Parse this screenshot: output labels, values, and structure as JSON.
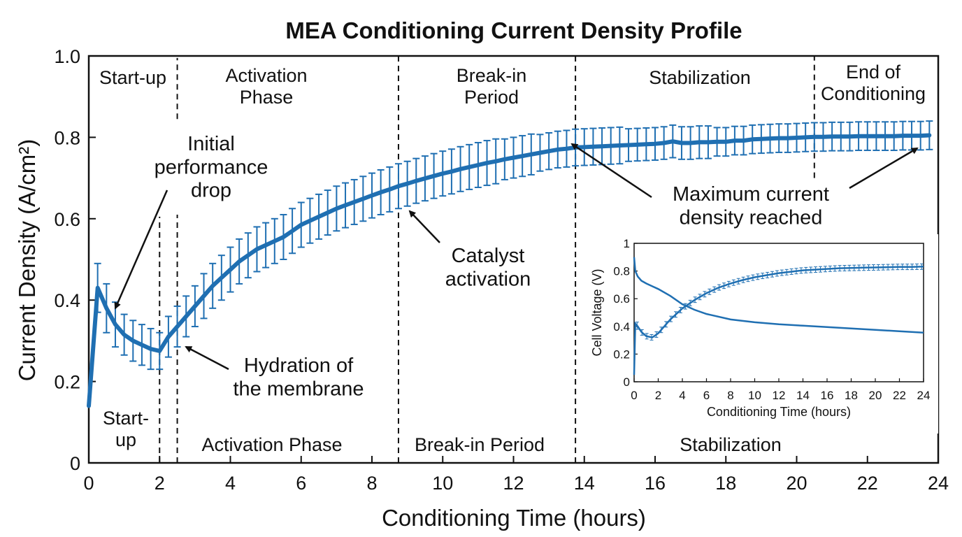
{
  "chart_data": [
    {
      "type": "line",
      "title": "MEA Conditioning Current Density Profile",
      "xlabel": "Conditioning Time (hours)",
      "ylabel": "Current Density (A/cm²)",
      "xlim": [
        0,
        24
      ],
      "ylim": [
        0,
        1.0
      ],
      "xticks": [
        "0",
        "2",
        "4",
        "6",
        "8",
        "10",
        "12",
        "14",
        "16",
        "18",
        "20",
        "22",
        "24"
      ],
      "yticks": [
        "0",
        "0.2",
        "0.4",
        "0.6",
        "0.8",
        "1.0"
      ],
      "grid": false,
      "color": "#1f6fb2",
      "series": [
        {
          "x": [
            0,
            0.25,
            0.5,
            0.75,
            1.0,
            1.25,
            1.5,
            1.75,
            2.0,
            2.25,
            2.5,
            2.75,
            3.0,
            3.25,
            3.5,
            3.75,
            4.0,
            4.25,
            4.5,
            4.75,
            5.0,
            5.25,
            5.5,
            5.75,
            6.0,
            6.25,
            6.5,
            6.75,
            7.0,
            7.25,
            7.5,
            7.75,
            8.0,
            8.25,
            8.5,
            8.75,
            9.0,
            9.25,
            9.5,
            9.75,
            10.0,
            10.25,
            10.5,
            10.75,
            11.0,
            11.25,
            11.5,
            11.75,
            12.0,
            12.25,
            12.5,
            12.75,
            13.0,
            13.25,
            13.5,
            13.75,
            14.0,
            14.25,
            14.5,
            14.75,
            15.0,
            15.25,
            15.5,
            15.75,
            16.0,
            16.25,
            16.5,
            16.75,
            17.0,
            17.25,
            17.5,
            17.75,
            18.0,
            18.25,
            18.5,
            18.75,
            19.0,
            19.25,
            19.5,
            19.75,
            20.0,
            20.25,
            20.5,
            20.75,
            21.0,
            21.25,
            21.5,
            21.75,
            22.0,
            22.25,
            22.5,
            22.75,
            23.0,
            23.25,
            23.5,
            23.75
          ],
          "y": [
            0.14,
            0.43,
            0.38,
            0.34,
            0.315,
            0.3,
            0.29,
            0.28,
            0.275,
            0.31,
            0.335,
            0.36,
            0.385,
            0.41,
            0.435,
            0.455,
            0.475,
            0.495,
            0.51,
            0.525,
            0.535,
            0.545,
            0.555,
            0.57,
            0.585,
            0.595,
            0.605,
            0.615,
            0.625,
            0.633,
            0.641,
            0.649,
            0.657,
            0.665,
            0.672,
            0.68,
            0.686,
            0.693,
            0.699,
            0.705,
            0.711,
            0.716,
            0.722,
            0.727,
            0.732,
            0.737,
            0.741,
            0.746,
            0.75,
            0.754,
            0.758,
            0.762,
            0.766,
            0.77,
            0.772,
            0.775,
            0.776,
            0.777,
            0.778,
            0.779,
            0.78,
            0.781,
            0.782,
            0.783,
            0.784,
            0.786,
            0.79,
            0.786,
            0.786,
            0.788,
            0.788,
            0.789,
            0.789,
            0.792,
            0.792,
            0.795,
            0.796,
            0.797,
            0.798,
            0.798,
            0.799,
            0.8,
            0.801,
            0.801,
            0.802,
            0.802,
            0.802,
            0.803,
            0.803,
            0.803,
            0.803,
            0.803,
            0.804,
            0.804,
            0.804,
            0.805
          ],
          "error": [
            0.0,
            0.06,
            0.06,
            0.055,
            0.05,
            0.05,
            0.05,
            0.05,
            0.045,
            0.05,
            0.05,
            0.05,
            0.05,
            0.055,
            0.055,
            0.055,
            0.055,
            0.055,
            0.055,
            0.055,
            0.055,
            0.055,
            0.055,
            0.055,
            0.055,
            0.055,
            0.055,
            0.055,
            0.055,
            0.055,
            0.055,
            0.055,
            0.055,
            0.055,
            0.055,
            0.055,
            0.055,
            0.055,
            0.055,
            0.055,
            0.055,
            0.055,
            0.055,
            0.055,
            0.055,
            0.055,
            0.055,
            0.05,
            0.05,
            0.05,
            0.05,
            0.045,
            0.045,
            0.045,
            0.045,
            0.045,
            0.045,
            0.045,
            0.045,
            0.045,
            0.045,
            0.04,
            0.04,
            0.04,
            0.04,
            0.04,
            0.04,
            0.04,
            0.04,
            0.04,
            0.04,
            0.035,
            0.035,
            0.035,
            0.035,
            0.035,
            0.035,
            0.035,
            0.035,
            0.035,
            0.035,
            0.035,
            0.035,
            0.035,
            0.035,
            0.035,
            0.035,
            0.035,
            0.035,
            0.035,
            0.035,
            0.035,
            0.035,
            0.035,
            0.035,
            0.035
          ]
        }
      ],
      "phase_boundaries": [
        2.0,
        2.5,
        8.75,
        13.75,
        20.5
      ],
      "phase_labels_top": [
        "Start-up",
        "Activation\nPhase",
        "Break-in\nPeriod",
        "Stabilization",
        "End of\nConditioning"
      ],
      "phase_labels_bottom": [
        "Start-\nup",
        "Activation Phase",
        "Break-in Period",
        "Stabilization"
      ],
      "annotations": [
        "Initial\nperformance\ndrop",
        "Hydration of\nthe membrane",
        "Catalyst\nactivation",
        "Maximum current\ndensity reached"
      ]
    },
    {
      "type": "line",
      "xlabel": "Conditioning Time (hours)",
      "ylabel": "Cell Voltage (V)",
      "xlim": [
        0,
        24
      ],
      "ylim": [
        0,
        1
      ],
      "xticks": [
        "0",
        "2",
        "4",
        "6",
        "8",
        "10",
        "12",
        "14",
        "16",
        "18",
        "20",
        "22",
        "24"
      ],
      "yticks": [
        "0",
        "0.2",
        "0.4",
        "0.6",
        "0.8",
        "1"
      ],
      "series": [
        {
          "x": [
            0,
            0.1,
            0.3,
            0.6,
            1,
            1.5,
            2,
            3,
            4,
            5,
            6,
            8,
            10,
            12,
            14,
            16,
            18,
            20,
            22,
            24
          ],
          "y": [
            0.9,
            0.8,
            0.76,
            0.73,
            0.71,
            0.69,
            0.67,
            0.62,
            0.56,
            0.52,
            0.49,
            0.45,
            0.43,
            0.415,
            0.405,
            0.395,
            0.385,
            0.375,
            0.365,
            0.355
          ]
        },
        {
          "x": [
            0,
            0.1,
            0.3,
            0.6,
            1,
            1.5,
            2,
            2.5,
            3,
            4,
            5,
            6,
            7,
            8,
            9,
            10,
            11,
            12,
            13,
            14,
            15,
            16,
            17,
            18,
            19,
            20,
            21,
            22,
            23,
            24
          ],
          "y": [
            0.05,
            0.42,
            0.4,
            0.36,
            0.33,
            0.32,
            0.35,
            0.4,
            0.45,
            0.53,
            0.59,
            0.64,
            0.68,
            0.71,
            0.735,
            0.755,
            0.77,
            0.785,
            0.795,
            0.805,
            0.81,
            0.815,
            0.82,
            0.822,
            0.824,
            0.826,
            0.828,
            0.83,
            0.83,
            0.832
          ],
          "error": [
            0.0,
            0.03,
            0.025,
            0.02,
            0.02,
            0.02,
            0.02,
            0.02,
            0.02,
            0.02,
            0.02,
            0.02,
            0.02,
            0.02,
            0.02,
            0.02,
            0.02,
            0.02,
            0.02,
            0.02,
            0.02,
            0.02,
            0.02,
            0.02,
            0.02,
            0.02,
            0.02,
            0.02,
            0.02,
            0.02
          ]
        }
      ]
    }
  ]
}
